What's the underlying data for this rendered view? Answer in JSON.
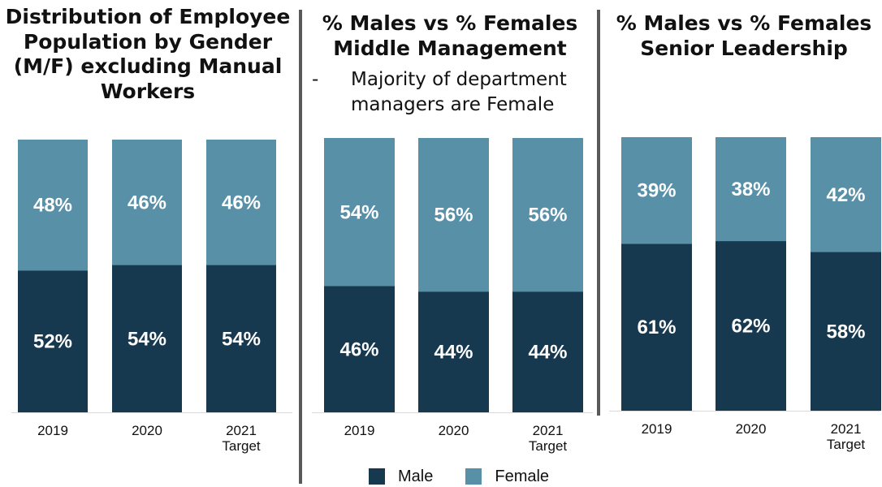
{
  "colors": {
    "male": "#17394f",
    "female": "#5890a8",
    "label": "#ffffff",
    "divider": "#595959"
  },
  "legend": {
    "male": "Male",
    "female": "Female"
  },
  "panels": [
    {
      "title_lines": [
        "Distribution of Employee",
        "Population by Gender",
        "(M/F) excluding Manual",
        "Workers"
      ],
      "subtitle": {
        "dash": "",
        "lines": []
      }
    },
    {
      "title_lines": [
        "% Males vs % Females",
        "Middle Management"
      ],
      "subtitle": {
        "dash": "-",
        "lines": [
          "Majority of department",
          "managers are Female"
        ]
      }
    },
    {
      "title_lines": [
        "% Males vs % Females",
        "Senior Leadership"
      ],
      "subtitle": {
        "dash": "",
        "lines": []
      }
    }
  ],
  "chart_data": [
    {
      "type": "bar",
      "stacked": true,
      "normalized_percent": true,
      "title": "Distribution of Employee Population by Gender (M/F) excluding Manual Workers",
      "categories": [
        "2019",
        "2020",
        "2021 Target"
      ],
      "category_lines": [
        [
          "2019"
        ],
        [
          "2020"
        ],
        [
          "2021",
          "Target"
        ]
      ],
      "series": [
        {
          "name": "Male",
          "values": [
            52,
            54,
            54
          ],
          "labels": [
            "52%",
            "54%",
            "54%"
          ]
        },
        {
          "name": "Female",
          "values": [
            48,
            46,
            46
          ],
          "labels": [
            "48%",
            "46%",
            "46%"
          ]
        }
      ],
      "ylim": [
        0,
        100
      ],
      "legend": "bottom"
    },
    {
      "type": "bar",
      "stacked": true,
      "normalized_percent": true,
      "title": "% Males vs % Females Middle Management",
      "categories": [
        "2019",
        "2020",
        "2021 Target"
      ],
      "category_lines": [
        [
          "2019"
        ],
        [
          "2020"
        ],
        [
          "2021",
          "Target"
        ]
      ],
      "series": [
        {
          "name": "Male",
          "values": [
            46,
            44,
            44
          ],
          "labels": [
            "46%",
            "44%",
            "44%"
          ]
        },
        {
          "name": "Female",
          "values": [
            54,
            56,
            56
          ],
          "labels": [
            "54%",
            "56%",
            "56%"
          ]
        }
      ],
      "ylim": [
        0,
        100
      ],
      "legend": "bottom"
    },
    {
      "type": "bar",
      "stacked": true,
      "normalized_percent": true,
      "title": "% Males vs % Females Senior Leadership",
      "categories": [
        "2019",
        "2020",
        "2021 Target"
      ],
      "category_lines": [
        [
          "2019"
        ],
        [
          "2020"
        ],
        [
          "2021",
          "Target"
        ]
      ],
      "series": [
        {
          "name": "Male",
          "values": [
            61,
            62,
            58
          ],
          "labels": [
            "61%",
            "62%",
            "58%"
          ]
        },
        {
          "name": "Female",
          "values": [
            39,
            38,
            42
          ],
          "labels": [
            "39%",
            "38%",
            "42%"
          ]
        }
      ],
      "ylim": [
        0,
        100
      ],
      "legend": "bottom"
    }
  ]
}
